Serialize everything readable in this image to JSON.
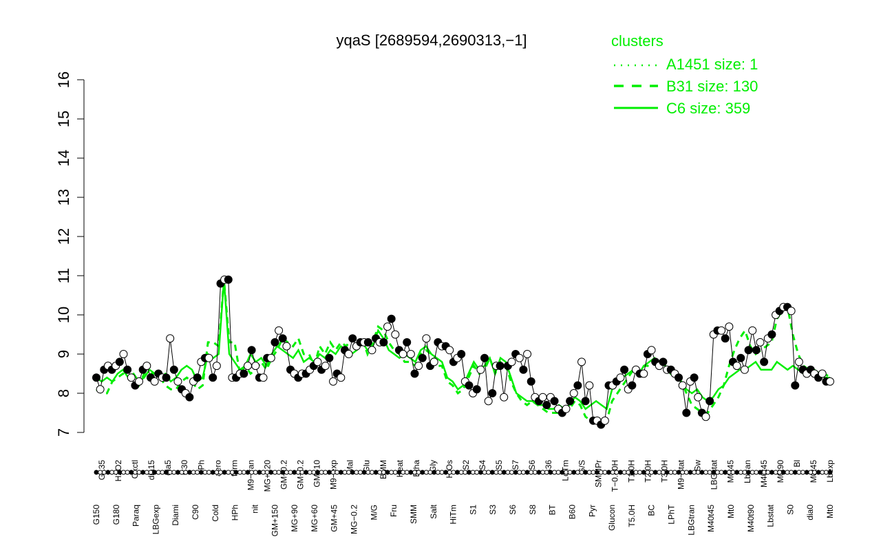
{
  "chart_data": {
    "type": "line",
    "title": "yqaS [2689594,2690313,−1]",
    "ylim": [
      7,
      16
    ],
    "yticks": [
      7,
      8,
      9,
      10,
      11,
      12,
      13,
      14,
      15,
      16
    ],
    "legend": {
      "title": "clusters",
      "position": "top-right",
      "entries": [
        {
          "label": "A1451 size: 1",
          "style": "dotted"
        },
        {
          "label": "B31 size: 130",
          "style": "dashed"
        },
        {
          "label": "C6 size: 359",
          "style": "solid"
        }
      ]
    },
    "tick_labels_row1": [
      "G135",
      "H2O2",
      "Oxctl",
      "dia15",
      "dia5",
      "C30",
      "LPh",
      "aero",
      "ferm",
      "M9−tran",
      "MG+120",
      "GM+0.2",
      "GM−0.2",
      "GM−10",
      "M9−exp",
      "Mal",
      "Glu",
      "BMM",
      "Heat",
      "Etha",
      "Gly",
      "HiOs",
      "S2",
      "S4",
      "S5",
      "S7",
      "S6",
      "B36",
      "LoTm",
      "G/S",
      "SMMPr",
      "T−0.40H",
      "T1.0H",
      "T2.0H",
      "T3.0H",
      "M9−stat",
      "Sw",
      "LBGstat",
      "M0t45",
      "Lbtran",
      "M40t45",
      "M0t90",
      "Bl",
      "M0t45",
      "Lbexp"
    ],
    "tick_labels_row2": [
      "G150",
      "G180",
      "Paraq",
      "LBGexp",
      "Diami",
      "C90",
      "Cold",
      "HPh",
      "nit",
      "GM+150",
      "MG+90",
      "MG+60",
      "GM+45",
      "MG−0.2",
      "M/G",
      "Fru",
      "SMM",
      "Salt",
      "HiTm",
      "S1",
      "S3",
      "S6",
      "S8",
      "BT",
      "B60",
      "Pyr",
      "Glucon",
      "T5.0H",
      "BC",
      "LPhT",
      "LBGtran",
      "M40t45",
      "Mt0",
      "M40t90",
      "Lbstat",
      "S0",
      "dia0",
      "Mt0"
    ],
    "series": [
      {
        "name": "C6",
        "values": [
          8.4,
          8.3,
          8.4,
          8.3,
          8.5,
          8.6,
          8.4,
          8.5,
          8.3,
          8.4,
          8.6,
          8.5,
          8.4,
          8.5,
          8.3,
          8.4,
          8.6,
          8.7,
          8.6,
          8.3,
          8.4,
          9.0,
          8.9,
          9.0,
          10.9,
          9.0,
          8.8,
          8.6,
          8.7,
          9.0,
          8.8,
          8.9,
          8.7,
          9.0,
          9.2,
          9.1,
          9.0,
          8.9,
          9.1,
          8.8,
          8.9,
          8.8,
          9.0,
          8.9,
          9.1,
          9.0,
          9.2,
          9.1,
          9.0,
          9.1,
          9.3,
          9.1,
          9.2,
          9.6,
          9.4,
          9.1,
          9.0,
          8.9,
          9.0,
          8.9,
          8.8,
          9.1,
          9.2,
          9.0,
          8.9,
          8.8,
          8.4,
          8.3,
          8.1,
          8.2,
          8.5,
          8.8,
          8.6,
          8.7,
          8.9,
          8.5,
          8.9,
          8.8,
          8.4,
          8.0,
          7.9,
          7.8,
          7.8,
          7.7,
          7.7,
          7.6,
          7.6,
          7.7,
          7.6,
          7.7,
          7.9,
          7.8,
          7.6,
          7.7,
          7.8,
          7.7,
          7.6,
          8.1,
          8.3,
          8.4,
          8.5,
          8.6,
          8.5,
          8.7,
          8.8,
          8.9,
          8.8,
          8.7,
          8.6,
          8.5,
          8.3,
          8.1,
          8.0,
          8.1,
          7.9,
          7.8,
          7.9,
          8.1,
          8.2,
          8.4,
          8.5,
          8.6,
          8.6,
          8.7,
          8.8,
          8.6,
          8.6,
          8.6,
          8.8,
          8.7,
          8.6,
          8.7,
          8.6,
          8.5,
          8.6,
          8.5,
          8.5,
          8.4,
          8.4
        ]
      },
      {
        "name": "B31",
        "values": [
          8.1,
          8.0,
          8.0,
          8.3,
          8.4,
          8.5,
          8.4,
          8.3,
          8.2,
          8.5,
          8.5,
          8.5,
          8.4,
          8.2,
          8.1,
          8.1,
          8.3,
          8.4,
          8.3,
          8.1,
          8.2,
          9.3,
          9.3,
          9.2,
          10.9,
          9.3,
          9.3,
          8.5,
          8.7,
          8.5,
          8.6,
          8.8,
          8.6,
          8.9,
          9.1,
          9.4,
          9.3,
          9.2,
          9.4,
          9.0,
          9.0,
          8.7,
          9.2,
          9.0,
          9.3,
          9.1,
          9.3,
          9.2,
          9.4,
          9.2,
          9.4,
          9.0,
          9.3,
          9.7,
          9.6,
          9.3,
          9.1,
          9.0,
          8.8,
          8.8,
          8.7,
          9.0,
          9.1,
          9.0,
          8.7,
          8.7,
          8.3,
          8.2,
          8.0,
          8.1,
          8.4,
          8.7,
          8.5,
          8.6,
          8.9,
          8.5,
          8.8,
          8.7,
          8.3,
          8.0,
          7.8,
          7.7,
          7.8,
          7.7,
          7.6,
          7.5,
          7.5,
          7.5,
          7.5,
          7.6,
          7.8,
          7.7,
          7.4,
          7.3,
          7.3,
          7.3,
          7.3,
          7.8,
          8.0,
          8.2,
          8.4,
          8.6,
          8.5,
          8.7,
          8.7,
          8.8,
          8.8,
          8.7,
          8.5,
          8.4,
          8.3,
          8.0,
          7.7,
          7.6,
          7.5,
          7.5,
          7.7,
          7.9,
          8.2,
          8.7,
          9.1,
          9.4,
          9.6,
          9.2,
          9.0,
          9.1,
          9.2,
          9.3,
          9.9,
          10.1,
          10.2,
          9.5,
          9.0,
          8.7,
          8.6,
          8.6,
          8.5,
          8.5,
          8.4
        ]
      },
      {
        "name": "A1451",
        "values": []
      }
    ],
    "points": [
      8.4,
      8.1,
      8.6,
      8.7,
      8.6,
      8.7,
      8.8,
      9.0,
      8.6,
      8.4,
      8.2,
      8.3,
      8.6,
      8.7,
      8.4,
      8.3,
      8.5,
      8.4,
      8.4,
      9.4,
      8.6,
      8.3,
      8.1,
      8.0,
      7.9,
      8.3,
      8.4,
      8.8,
      8.9,
      8.9,
      8.4,
      8.7,
      10.8,
      10.9,
      10.9,
      8.4,
      8.4,
      8.5,
      8.5,
      8.7,
      9.1,
      8.7,
      8.4,
      8.4,
      8.9,
      8.9,
      9.3,
      9.6,
      9.4,
      9.2,
      8.6,
      8.5,
      8.4,
      8.5,
      8.5,
      8.6,
      8.7,
      8.8,
      8.6,
      8.7,
      8.9,
      8.3,
      8.5,
      8.4,
      9.1,
      9.0,
      9.4,
      9.2,
      9.3,
      9.3,
      9.3,
      9.1,
      9.4,
      9.3,
      9.3,
      9.7,
      9.9,
      9.5,
      9.1,
      9.0,
      9.3,
      9.0,
      8.5,
      8.7,
      8.9,
      9.4,
      8.7,
      8.8,
      9.3,
      9.2,
      9.2,
      9.1,
      8.8,
      8.9,
      9.0,
      8.3,
      8.2,
      8.0,
      8.1,
      8.6,
      8.9,
      7.8,
      8.0,
      8.7,
      8.7,
      7.9,
      8.7,
      8.8,
      9.0,
      8.9,
      8.6,
      9.0,
      8.3,
      7.9,
      7.8,
      7.9,
      7.7,
      7.9,
      7.8,
      7.6,
      7.5,
      7.6,
      7.8,
      8.0,
      8.2,
      8.8,
      7.8,
      8.2,
      7.3,
      7.3,
      7.2,
      7.3,
      8.2,
      8.2,
      8.3,
      8.4,
      8.6,
      8.1,
      8.2,
      8.6,
      8.5,
      8.5,
      9.0,
      9.1,
      8.8,
      8.7,
      8.8,
      8.6,
      8.6,
      8.5,
      8.4,
      8.2,
      7.5,
      8.3,
      8.4,
      7.9,
      7.5,
      7.4,
      7.8,
      9.5,
      9.6,
      9.6,
      9.4,
      9.7,
      8.8,
      8.7,
      8.9,
      8.6,
      9.1,
      9.6,
      9.1,
      9.3,
      8.8,
      9.4,
      9.5,
      10.0,
      10.1,
      10.2,
      10.2,
      10.1,
      8.2,
      8.8,
      8.6,
      8.5,
      8.6,
      8.5,
      8.4,
      8.5,
      8.3,
      8.3
    ]
  }
}
